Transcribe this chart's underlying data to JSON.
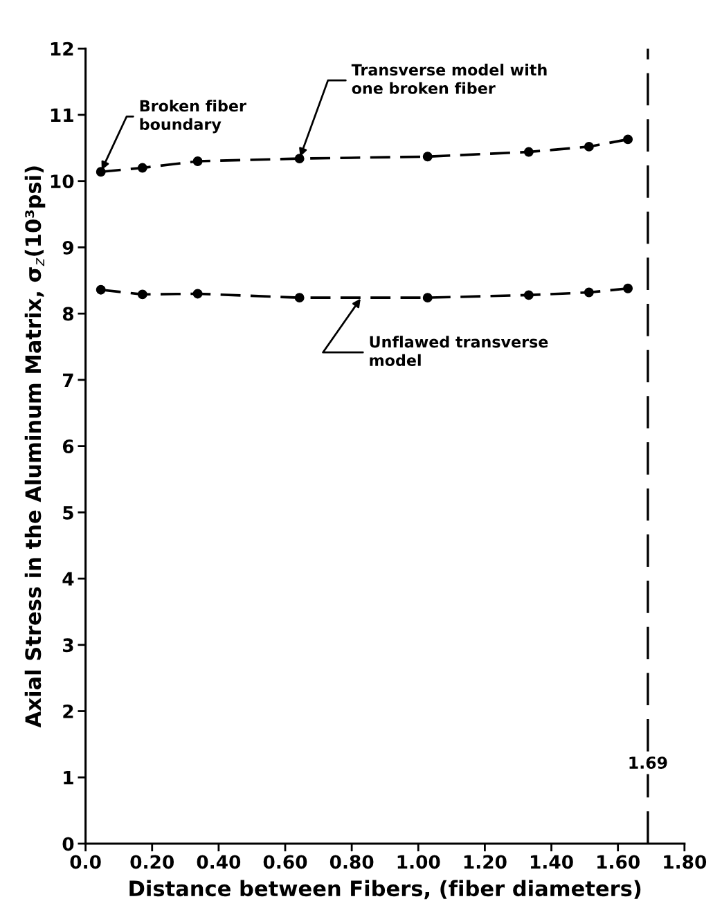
{
  "chart_data": {
    "type": "line",
    "xlabel": "Distance between Fibers, (fiber diameters)",
    "ylabel": "Axial Stress in the Aluminum Matrix, σ$_{z}$(10³psi)",
    "xlim": [
      0,
      1.8
    ],
    "ylim": [
      0,
      12
    ],
    "xticks": [
      {
        "value": 0,
        "label": "0.0"
      },
      {
        "value": 0.2,
        "label": "0.20"
      },
      {
        "value": 0.4,
        "label": "0.40"
      },
      {
        "value": 0.6,
        "label": "0.60"
      },
      {
        "value": 0.8,
        "label": "0.80"
      },
      {
        "value": 1.0,
        "label": "1.00"
      },
      {
        "value": 1.2,
        "label": "1.20"
      },
      {
        "value": 1.4,
        "label": "1.40"
      },
      {
        "value": 1.6,
        "label": "1.60"
      },
      {
        "value": 1.8,
        "label": "1.80"
      }
    ],
    "yticks": [
      0,
      1,
      2,
      3,
      4,
      5,
      6,
      7,
      8,
      9,
      10,
      11,
      12
    ],
    "series": [
      {
        "color": "#000000",
        "line_style": "dashed",
        "x": [
          0.046,
          0.171,
          0.337,
          0.643,
          1.028,
          1.332,
          1.513,
          1.63
        ],
        "values": [
          10.14,
          10.2,
          10.3,
          10.34,
          10.37,
          10.44,
          10.52,
          10.63
        ]
      },
      {
        "color": "#000000",
        "line_style": "dashed",
        "x": [
          0.046,
          0.171,
          0.337,
          0.643,
          1.028,
          1.332,
          1.513,
          1.63
        ],
        "values": [
          8.36,
          8.29,
          8.3,
          8.24,
          8.24,
          8.28,
          8.32,
          8.38
        ]
      }
    ],
    "marker": "circle",
    "ref_lines": [
      {
        "axis": "x",
        "value": 1.69,
        "label": "1.69",
        "line_style": "dashed",
        "color": "#000000"
      }
    ],
    "annotations": [
      {
        "text": "Broken fiber\nboundary",
        "x": 0.046,
        "y": 10.14
      },
      {
        "text": "Transverse model with\none broken fiber",
        "x": 0.643,
        "y": 10.34
      },
      {
        "text": "Unflawed transverse\nmodel",
        "x": 0.83,
        "y": 8.25
      }
    ],
    "grid": false
  }
}
